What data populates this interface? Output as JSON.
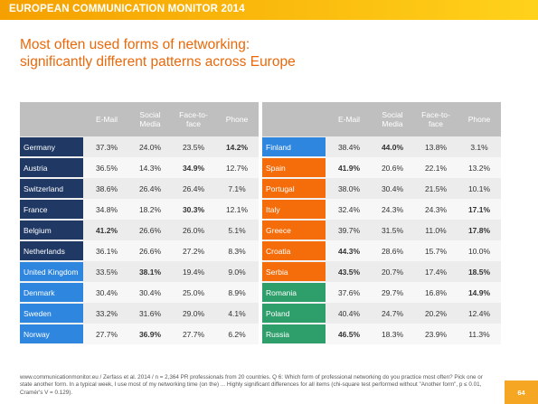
{
  "header": {
    "brand": "EUROPEAN COMMUNICATION MONITOR 2014"
  },
  "title": {
    "line1": "Most often used forms of networking:",
    "line2": "significantly different patterns across Europe"
  },
  "colors": {
    "dark_blue": "#1f3864",
    "light_blue": "#2e86de",
    "orange": "#f56d0b",
    "green": "#2e9e6b",
    "header_grey": "#bfbfbf",
    "accent": "#e8690b"
  },
  "chart_data": {
    "type": "table",
    "columns": [
      "E-Mail",
      "Social Media",
      "Face-to-face",
      "Phone"
    ],
    "columns_display": [
      "E-Mail",
      "Social\nMedia",
      "Face-to-\nface",
      "Phone"
    ],
    "left": [
      {
        "country": "Germany",
        "color": "dark_blue",
        "values": [
          "37.3%",
          "24.0%",
          "23.5%",
          "14.2%"
        ],
        "bold": [
          false,
          false,
          false,
          true
        ]
      },
      {
        "country": "Austria",
        "color": "dark_blue",
        "values": [
          "36.5%",
          "14.3%",
          "34.9%",
          "12.7%"
        ],
        "bold": [
          false,
          false,
          true,
          false
        ]
      },
      {
        "country": "Switzerland",
        "color": "dark_blue",
        "values": [
          "38.6%",
          "26.4%",
          "26.4%",
          "7.1%"
        ],
        "bold": [
          false,
          false,
          false,
          false
        ]
      },
      {
        "country": "France",
        "color": "dark_blue",
        "values": [
          "34.8%",
          "18.2%",
          "30.3%",
          "12.1%"
        ],
        "bold": [
          false,
          false,
          true,
          false
        ]
      },
      {
        "country": "Belgium",
        "color": "dark_blue",
        "values": [
          "41.2%",
          "26.6%",
          "26.0%",
          "5.1%"
        ],
        "bold": [
          true,
          false,
          false,
          false
        ]
      },
      {
        "country": "Netherlands",
        "color": "dark_blue",
        "values": [
          "36.1%",
          "26.6%",
          "27.2%",
          "8.3%"
        ],
        "bold": [
          false,
          false,
          false,
          false
        ]
      },
      {
        "country": "United Kingdom",
        "color": "light_blue",
        "values": [
          "33.5%",
          "38.1%",
          "19.4%",
          "9.0%"
        ],
        "bold": [
          false,
          true,
          false,
          false
        ]
      },
      {
        "country": "Denmark",
        "color": "light_blue",
        "values": [
          "30.4%",
          "30.4%",
          "25.0%",
          "8.9%"
        ],
        "bold": [
          false,
          false,
          false,
          false
        ]
      },
      {
        "country": "Sweden",
        "color": "light_blue",
        "values": [
          "33.2%",
          "31.6%",
          "29.0%",
          "4.1%"
        ],
        "bold": [
          false,
          false,
          false,
          false
        ]
      },
      {
        "country": "Norway",
        "color": "light_blue",
        "values": [
          "27.7%",
          "36.9%",
          "27.7%",
          "6.2%"
        ],
        "bold": [
          false,
          true,
          false,
          false
        ]
      }
    ],
    "right": [
      {
        "country": "Finland",
        "color": "light_blue",
        "values": [
          "38.4%",
          "44.0%",
          "13.8%",
          "3.1%"
        ],
        "bold": [
          false,
          true,
          false,
          false
        ]
      },
      {
        "country": "Spain",
        "color": "orange",
        "values": [
          "41.9%",
          "20.6%",
          "22.1%",
          "13.2%"
        ],
        "bold": [
          true,
          false,
          false,
          false
        ]
      },
      {
        "country": "Portugal",
        "color": "orange",
        "values": [
          "38.0%",
          "30.4%",
          "21.5%",
          "10.1%"
        ],
        "bold": [
          false,
          false,
          false,
          false
        ]
      },
      {
        "country": "Italy",
        "color": "orange",
        "values": [
          "32.4%",
          "24.3%",
          "24.3%",
          "17.1%"
        ],
        "bold": [
          false,
          false,
          false,
          true
        ]
      },
      {
        "country": "Greece",
        "color": "orange",
        "values": [
          "39.7%",
          "31.5%",
          "11.0%",
          "17.8%"
        ],
        "bold": [
          false,
          false,
          false,
          true
        ]
      },
      {
        "country": "Croatia",
        "color": "orange",
        "values": [
          "44.3%",
          "28.6%",
          "15.7%",
          "10.0%"
        ],
        "bold": [
          true,
          false,
          false,
          false
        ]
      },
      {
        "country": "Serbia",
        "color": "orange",
        "values": [
          "43.5%",
          "20.7%",
          "17.4%",
          "18.5%"
        ],
        "bold": [
          true,
          false,
          false,
          true
        ]
      },
      {
        "country": "Romania",
        "color": "green",
        "values": [
          "37.6%",
          "29.7%",
          "16.8%",
          "14.9%"
        ],
        "bold": [
          false,
          false,
          false,
          true
        ]
      },
      {
        "country": "Poland",
        "color": "green",
        "values": [
          "40.4%",
          "24.7%",
          "20.2%",
          "12.4%"
        ],
        "bold": [
          false,
          false,
          false,
          false
        ]
      },
      {
        "country": "Russia",
        "color": "green",
        "values": [
          "46.5%",
          "18.3%",
          "23.9%",
          "11.3%"
        ],
        "bold": [
          true,
          false,
          false,
          false
        ]
      }
    ]
  },
  "footer": {
    "text": "www.communicationmonitor.eu / Zerfass et al. 2014 / n = 2,364 PR professionals from 20 countries. Q 6: Which form of professional networking do you practice most often? Pick one or state another form. In a typical week, I use most of my networking time (on the) ... Highly significant differences for all items (chi-square test performed without \"Another form\", p ≤ 0.01, Cramér's V = 0.129).",
    "page": "64"
  }
}
